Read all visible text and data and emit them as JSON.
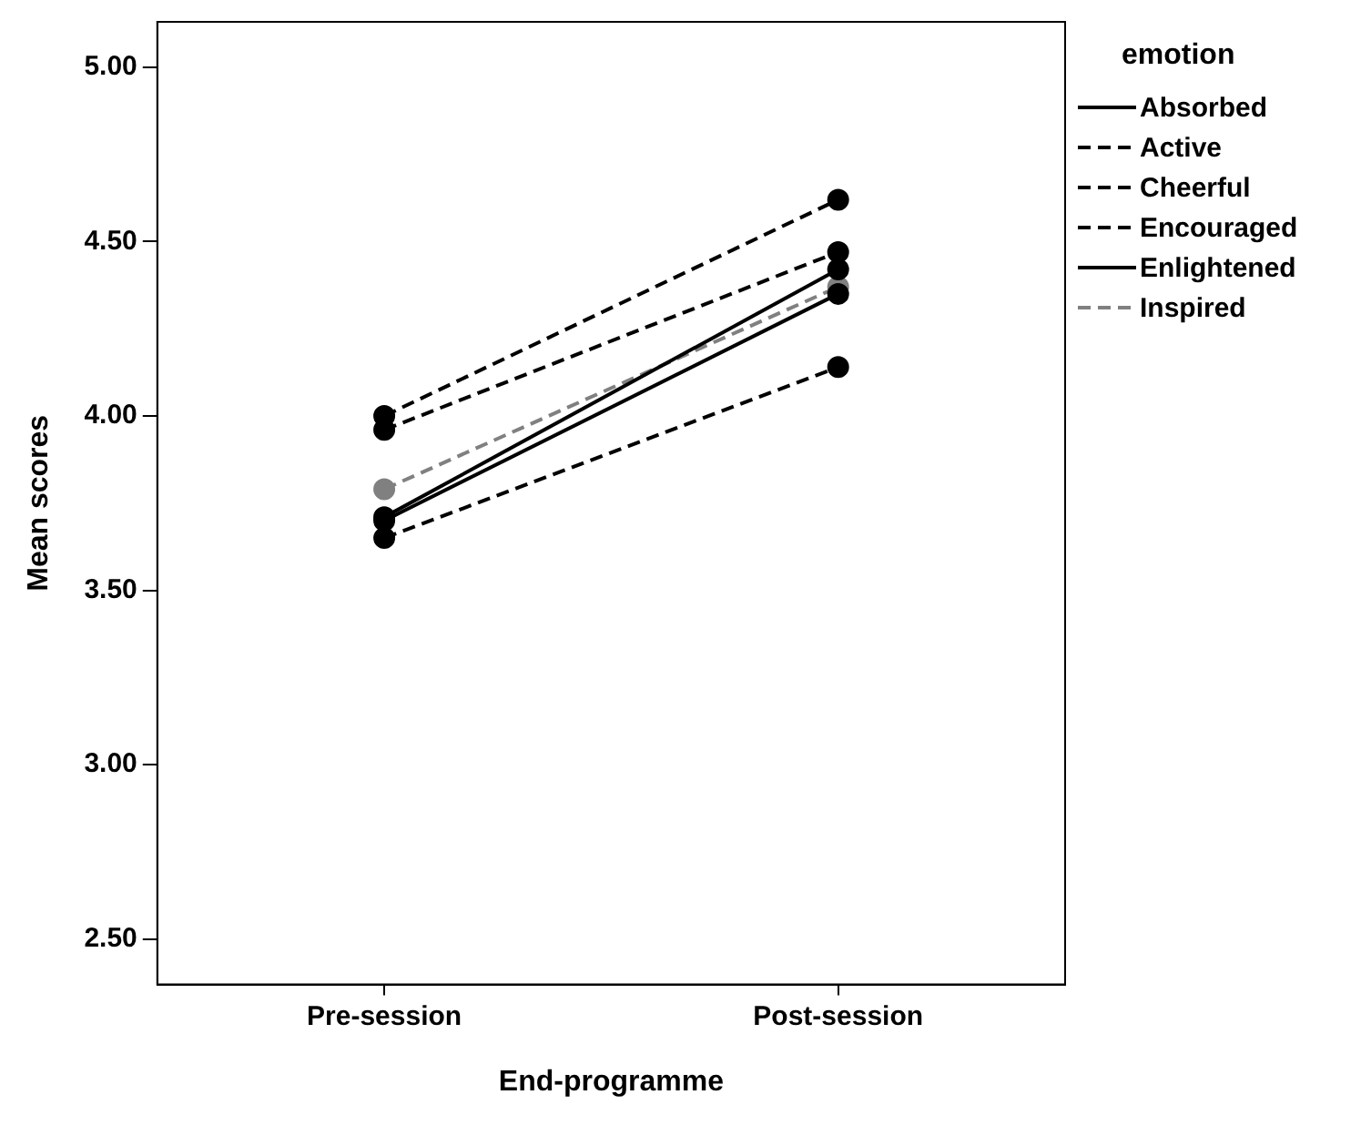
{
  "chart_data": {
    "type": "line",
    "xlabel": "End-programme",
    "ylabel": "Mean scores",
    "legend_title": "emotion",
    "categories": [
      "Pre-session",
      "Post-session"
    ],
    "series": [
      {
        "name": "Absorbed",
        "color": "#000000",
        "line_style": "solid",
        "values": [
          3.7,
          4.35
        ]
      },
      {
        "name": "Active",
        "color": "#000000",
        "line_style": "dashed",
        "values": [
          3.65,
          4.14
        ]
      },
      {
        "name": "Cheerful",
        "color": "#000000",
        "line_style": "dashed",
        "values": [
          4.0,
          4.62
        ]
      },
      {
        "name": "Encouraged",
        "color": "#000000",
        "line_style": "dashed",
        "values": [
          3.96,
          4.47
        ]
      },
      {
        "name": "Enlightened",
        "color": "#000000",
        "line_style": "solid",
        "values": [
          3.71,
          4.42
        ]
      },
      {
        "name": "Inspired",
        "color": "#808080",
        "line_style": "dashed",
        "values": [
          3.79,
          4.37
        ]
      }
    ],
    "ylim": [
      2.37,
      5.13
    ],
    "yticks": [
      {
        "value": 2.5,
        "label": "2.50"
      },
      {
        "value": 3,
        "label": "3.00"
      },
      {
        "value": 3.5,
        "label": "3.50"
      },
      {
        "value": 4,
        "label": "4.00"
      },
      {
        "value": 4.5,
        "label": "4.50"
      },
      {
        "value": 5,
        "label": "5.00"
      }
    ],
    "grid": false,
    "legend": "top right",
    "marker": "circle"
  }
}
